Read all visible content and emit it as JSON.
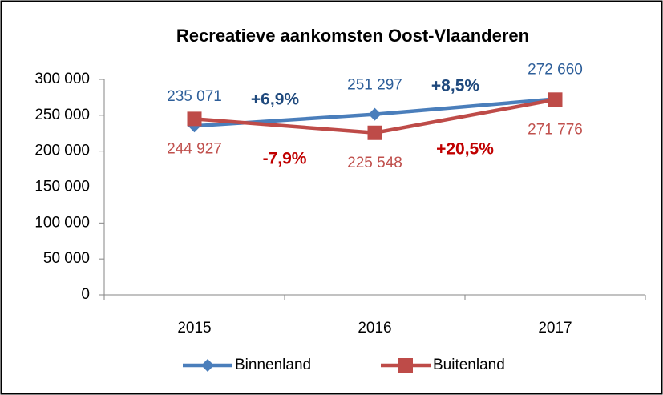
{
  "chart_data": {
    "type": "line",
    "title": "Recreatieve aankomsten Oost-Vlaanderen",
    "categories": [
      "2015",
      "2016",
      "2017"
    ],
    "series": [
      {
        "name": "Binnenland",
        "color": "#4a7ebb",
        "label_color": "#2e5f9a",
        "change_color": "#1f497d",
        "marker": "diamond",
        "values": [
          235071,
          251297,
          272660
        ],
        "value_labels": [
          "235 071",
          "251 297",
          "272 660"
        ],
        "changes": [
          "+6,9%",
          "+8,5%"
        ]
      },
      {
        "name": "Buitenland",
        "color": "#be4b48",
        "label_color": "#c0504d",
        "change_color": "#c00000",
        "marker": "square",
        "values": [
          244927,
          225548,
          271776
        ],
        "value_labels": [
          "244 927",
          "225 548",
          "271 776"
        ],
        "changes": [
          "-7,9%",
          "+20,5%"
        ]
      }
    ],
    "ylim": [
      0,
      300000
    ],
    "yticks": [
      {
        "value": 0,
        "label": "0"
      },
      {
        "value": 50000,
        "label": "50 000"
      },
      {
        "value": 100000,
        "label": "100 000"
      },
      {
        "value": 150000,
        "label": "150 000"
      },
      {
        "value": 200000,
        "label": "200 000"
      },
      {
        "value": 250000,
        "label": "250 000"
      },
      {
        "value": 300000,
        "label": "300 000"
      }
    ],
    "legend": "bottom"
  }
}
